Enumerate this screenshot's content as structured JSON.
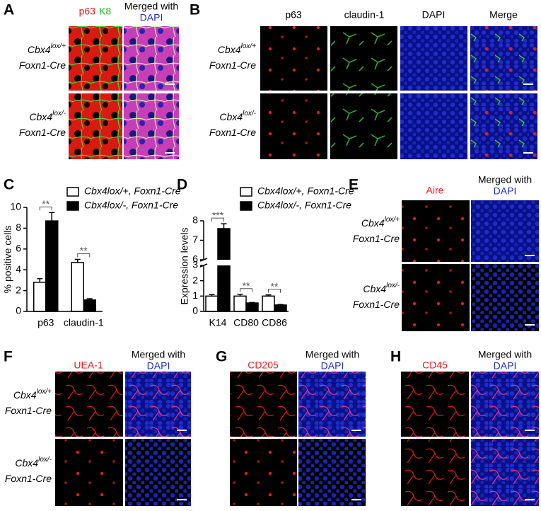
{
  "panel_a": {
    "label": "A",
    "headers": [
      "p63",
      "K8",
      "Merged with",
      "DAPI"
    ],
    "rows": [
      {
        "gene": "Cbx4",
        "allele": "lox/+",
        "driver": "Foxn1-Cre"
      },
      {
        "gene": "Cbx4",
        "allele": "lox/-",
        "driver": "Foxn1-Cre"
      }
    ]
  },
  "panel_b": {
    "label": "B",
    "headers": [
      "p63",
      "claudin-1",
      "DAPI",
      "Merge"
    ],
    "rows": [
      {
        "gene": "Cbx4",
        "allele": "lox/+",
        "driver": "Foxn1-Cre"
      },
      {
        "gene": "Cbx4",
        "allele": "lox/-",
        "driver": "Foxn1-Cre"
      }
    ]
  },
  "panel_e": {
    "label": "E",
    "headers": [
      "Aire",
      "Merged with",
      "DAPI"
    ],
    "rows": [
      {
        "gene": "Cbx4",
        "allele": "lox/+",
        "driver": "Foxn1-Cre"
      },
      {
        "gene": "Cbx4",
        "allele": "lox/-",
        "driver": "Foxn1-Cre"
      }
    ]
  },
  "panel_f": {
    "label": "F",
    "headers": [
      "UEA-1",
      "Merged with",
      "DAPI"
    ],
    "rows": [
      {
        "gene": "Cbx4",
        "allele": "lox/+",
        "driver": "Foxn1-Cre"
      },
      {
        "gene": "Cbx4",
        "allele": "lox/-",
        "driver": "Foxn1-Cre"
      }
    ]
  },
  "panel_g": {
    "label": "G",
    "headers": [
      "CD205",
      "Merged with",
      "DAPI"
    ]
  },
  "panel_h": {
    "label": "H",
    "headers": [
      "CD45",
      "Merged with",
      "DAPI"
    ]
  },
  "chart_data": [
    {
      "type": "bar",
      "panel_label": "C",
      "ylabel": "% positive cells",
      "categories": [
        "p63",
        "claudin-1"
      ],
      "series": [
        {
          "name": "Cbx4lox/+, Foxn1-Cre",
          "color": "#ffffff",
          "values": [
            2.8,
            4.7
          ],
          "errors": [
            0.35,
            0.3
          ]
        },
        {
          "name": "Cbx4lox/-, Foxn1-Cre",
          "color": "#000000",
          "values": [
            8.7,
            1.1
          ],
          "errors": [
            0.8,
            0.12
          ]
        }
      ],
      "ylim": [
        0,
        10
      ],
      "yticks": [
        0,
        2,
        4,
        6,
        8,
        10
      ],
      "significance": [
        "**",
        "**"
      ]
    },
    {
      "type": "bar",
      "panel_label": "D",
      "ylabel": "Expression levels",
      "categories": [
        "K14",
        "CD80",
        "CD86"
      ],
      "series": [
        {
          "name": "Cbx4lox/+, Foxn1-Cre",
          "color": "#ffffff",
          "values": [
            1.0,
            1.0,
            1.0
          ],
          "errors": [
            0.1,
            0.12,
            0.08
          ]
        },
        {
          "name": "Cbx4lox/-, Foxn1-Cre",
          "color": "#000000",
          "values": [
            7.6,
            0.55,
            0.42
          ],
          "errors": [
            0.25,
            0.03,
            0.03
          ]
        }
      ],
      "ylim": [
        0,
        8
      ],
      "yticks": [
        0,
        1,
        2,
        3,
        6,
        7,
        8
      ],
      "axis_break": [
        3,
        6
      ],
      "significance": [
        "***",
        "**",
        "**"
      ]
    }
  ]
}
